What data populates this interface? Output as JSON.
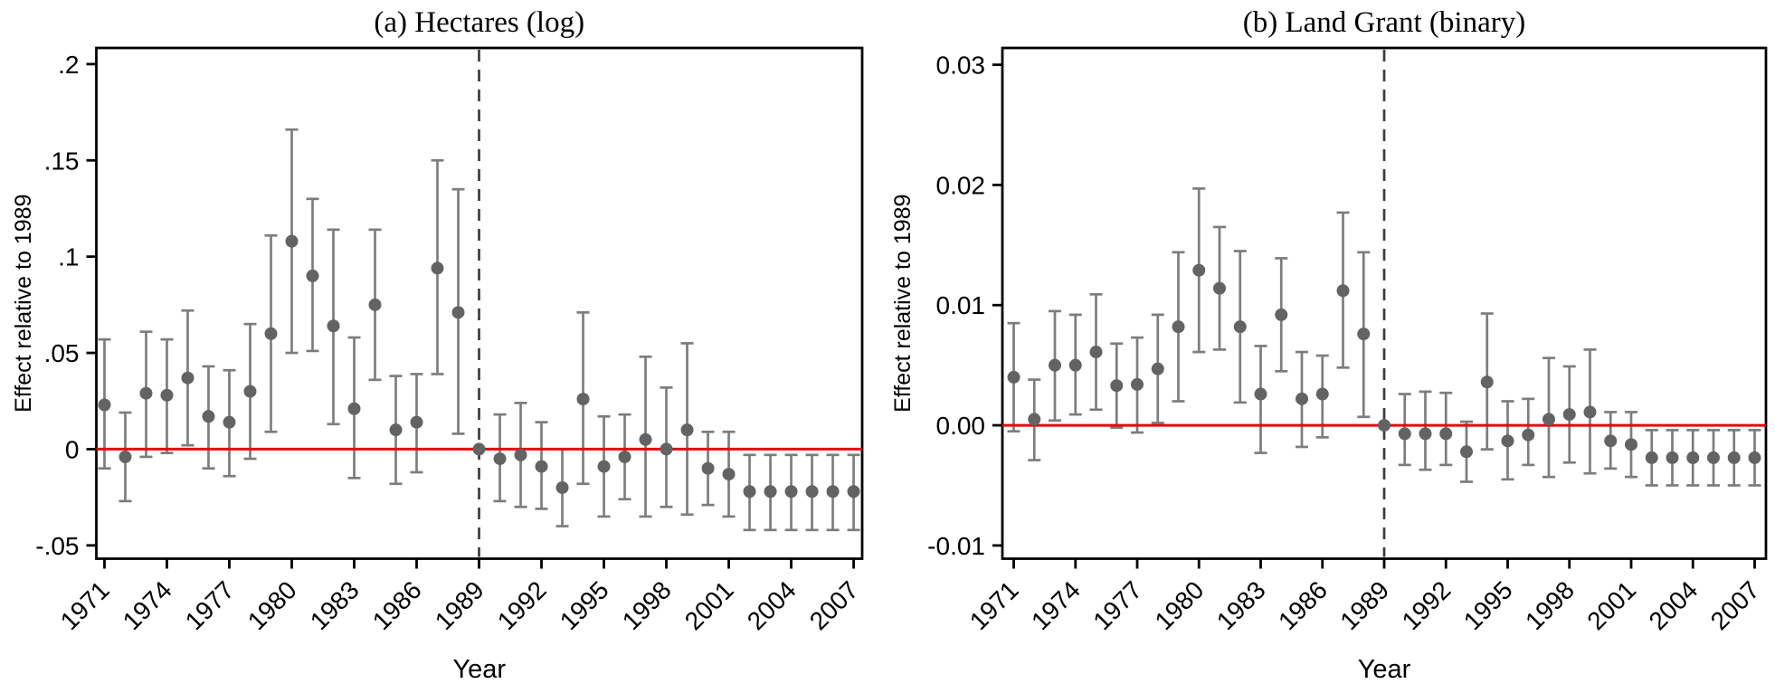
{
  "figure": {
    "description": "Two-panel event-study coefficient plot with 95% confidence interval bars, red horizontal line at zero and dashed vertical reference line at 1989"
  },
  "colors": {
    "point": "#636363",
    "error_bar": "#7d7d7d",
    "zero_line": "#e8000d",
    "reference_line": "#3c3c3c",
    "axis": "#000000"
  },
  "chart_data": [
    {
      "type": "scatter",
      "title": "(a) Hectares (log)",
      "xlabel": "Year",
      "ylabel": "Effect relative to 1989",
      "xlim": [
        1970.61,
        2007.41
      ],
      "ylim": [
        -0.0569,
        0.2084
      ],
      "grid": false,
      "legend": false,
      "reference_year": 1989,
      "zero_line_value": 0,
      "xticks": [
        {
          "v": 1971,
          "label": "1971"
        },
        {
          "v": 1974,
          "label": "1974"
        },
        {
          "v": 1977,
          "label": "1977"
        },
        {
          "v": 1980,
          "label": "1980"
        },
        {
          "v": 1983,
          "label": "1983"
        },
        {
          "v": 1986,
          "label": "1986"
        },
        {
          "v": 1989,
          "label": "1989"
        },
        {
          "v": 1992,
          "label": "1992"
        },
        {
          "v": 1995,
          "label": "1995"
        },
        {
          "v": 1998,
          "label": "1998"
        },
        {
          "v": 2001,
          "label": "2001"
        },
        {
          "v": 2004,
          "label": "2004"
        },
        {
          "v": 2007,
          "label": "2007"
        }
      ],
      "yticks": [
        {
          "v": 0.2,
          "label": ".2"
        },
        {
          "v": 0.15,
          "label": ".15"
        },
        {
          "v": 0.1,
          "label": ".1"
        },
        {
          "v": 0.05,
          "label": ".05"
        },
        {
          "v": 0,
          "label": "0"
        },
        {
          "v": -0.05,
          "label": "-.05"
        }
      ],
      "points": [
        {
          "year": 1971,
          "est": 0.023,
          "lo": -0.01,
          "hi": 0.057
        },
        {
          "year": 1972,
          "est": -0.004,
          "lo": -0.027,
          "hi": 0.019
        },
        {
          "year": 1973,
          "est": 0.029,
          "lo": -0.004,
          "hi": 0.061
        },
        {
          "year": 1974,
          "est": 0.028,
          "lo": -0.002,
          "hi": 0.057
        },
        {
          "year": 1975,
          "est": 0.037,
          "lo": 0.002,
          "hi": 0.072
        },
        {
          "year": 1976,
          "est": 0.017,
          "lo": -0.01,
          "hi": 0.043
        },
        {
          "year": 1977,
          "est": 0.014,
          "lo": -0.014,
          "hi": 0.041
        },
        {
          "year": 1978,
          "est": 0.03,
          "lo": -0.005,
          "hi": 0.065
        },
        {
          "year": 1979,
          "est": 0.06,
          "lo": 0.009,
          "hi": 0.111
        },
        {
          "year": 1980,
          "est": 0.108,
          "lo": 0.05,
          "hi": 0.166
        },
        {
          "year": 1981,
          "est": 0.09,
          "lo": 0.051,
          "hi": 0.13
        },
        {
          "year": 1982,
          "est": 0.064,
          "lo": 0.013,
          "hi": 0.114
        },
        {
          "year": 1983,
          "est": 0.021,
          "lo": -0.015,
          "hi": 0.058
        },
        {
          "year": 1984,
          "est": 0.075,
          "lo": 0.036,
          "hi": 0.114
        },
        {
          "year": 1985,
          "est": 0.01,
          "lo": -0.018,
          "hi": 0.038
        },
        {
          "year": 1986,
          "est": 0.014,
          "lo": -0.012,
          "hi": 0.039
        },
        {
          "year": 1987,
          "est": 0.094,
          "lo": 0.039,
          "hi": 0.15
        },
        {
          "year": 1988,
          "est": 0.071,
          "lo": 0.008,
          "hi": 0.135
        },
        {
          "year": 1989,
          "est": 0.0,
          "lo": null,
          "hi": null
        },
        {
          "year": 1990,
          "est": -0.005,
          "lo": -0.027,
          "hi": 0.018
        },
        {
          "year": 1991,
          "est": -0.003,
          "lo": -0.03,
          "hi": 0.024
        },
        {
          "year": 1992,
          "est": -0.009,
          "lo": -0.031,
          "hi": 0.014
        },
        {
          "year": 1993,
          "est": -0.02,
          "lo": -0.04,
          "hi": 0.0
        },
        {
          "year": 1994,
          "est": 0.026,
          "lo": -0.018,
          "hi": 0.071
        },
        {
          "year": 1995,
          "est": -0.009,
          "lo": -0.035,
          "hi": 0.017
        },
        {
          "year": 1996,
          "est": -0.004,
          "lo": -0.026,
          "hi": 0.018
        },
        {
          "year": 1997,
          "est": 0.005,
          "lo": -0.035,
          "hi": 0.048
        },
        {
          "year": 1998,
          "est": 0.0,
          "lo": -0.03,
          "hi": 0.032
        },
        {
          "year": 1999,
          "est": 0.01,
          "lo": -0.034,
          "hi": 0.055
        },
        {
          "year": 2000,
          "est": -0.01,
          "lo": -0.029,
          "hi": 0.009
        },
        {
          "year": 2001,
          "est": -0.013,
          "lo": -0.035,
          "hi": 0.009
        },
        {
          "year": 2002,
          "est": -0.022,
          "lo": -0.042,
          "hi": -0.003
        },
        {
          "year": 2003,
          "est": -0.022,
          "lo": -0.042,
          "hi": -0.003
        },
        {
          "year": 2004,
          "est": -0.022,
          "lo": -0.042,
          "hi": -0.003
        },
        {
          "year": 2005,
          "est": -0.022,
          "lo": -0.042,
          "hi": -0.003
        },
        {
          "year": 2006,
          "est": -0.022,
          "lo": -0.042,
          "hi": -0.003
        },
        {
          "year": 2007,
          "est": -0.022,
          "lo": -0.042,
          "hi": -0.003
        }
      ]
    },
    {
      "type": "scatter",
      "title": "(b) Land Grant (binary)",
      "xlabel": "Year",
      "ylabel": "Effect relative to 1989",
      "xlim": [
        1970.45,
        2007.55
      ],
      "ylim": [
        -0.0111,
        0.0314
      ],
      "grid": false,
      "legend": false,
      "reference_year": 1989,
      "zero_line_value": 0,
      "xticks": [
        {
          "v": 1971,
          "label": "1971"
        },
        {
          "v": 1974,
          "label": "1974"
        },
        {
          "v": 1977,
          "label": "1977"
        },
        {
          "v": 1980,
          "label": "1980"
        },
        {
          "v": 1983,
          "label": "1983"
        },
        {
          "v": 1986,
          "label": "1986"
        },
        {
          "v": 1989,
          "label": "1989"
        },
        {
          "v": 1992,
          "label": "1992"
        },
        {
          "v": 1995,
          "label": "1995"
        },
        {
          "v": 1998,
          "label": "1998"
        },
        {
          "v": 2001,
          "label": "2001"
        },
        {
          "v": 2004,
          "label": "2004"
        },
        {
          "v": 2007,
          "label": "2007"
        }
      ],
      "yticks": [
        {
          "v": 0.03,
          "label": "0.03"
        },
        {
          "v": 0.02,
          "label": "0.02"
        },
        {
          "v": 0.01,
          "label": "0.01"
        },
        {
          "v": 0,
          "label": "0.00"
        },
        {
          "v": -0.01,
          "label": "-0.01"
        }
      ],
      "points": [
        {
          "year": 1971,
          "est": 0.004,
          "lo": -0.0005,
          "hi": 0.0085
        },
        {
          "year": 1972,
          "est": 0.0005,
          "lo": -0.0029,
          "hi": 0.0038
        },
        {
          "year": 1973,
          "est": 0.005,
          "lo": 0.0004,
          "hi": 0.0095
        },
        {
          "year": 1974,
          "est": 0.005,
          "lo": 0.0009,
          "hi": 0.0092
        },
        {
          "year": 1975,
          "est": 0.0061,
          "lo": 0.0013,
          "hi": 0.0109
        },
        {
          "year": 1976,
          "est": 0.0033,
          "lo": -0.0002,
          "hi": 0.0068
        },
        {
          "year": 1977,
          "est": 0.0034,
          "lo": -0.0006,
          "hi": 0.0073
        },
        {
          "year": 1978,
          "est": 0.0047,
          "lo": 0.0002,
          "hi": 0.0092
        },
        {
          "year": 1979,
          "est": 0.0082,
          "lo": 0.002,
          "hi": 0.0144
        },
        {
          "year": 1980,
          "est": 0.0129,
          "lo": 0.0061,
          "hi": 0.0197
        },
        {
          "year": 1981,
          "est": 0.0114,
          "lo": 0.0063,
          "hi": 0.0165
        },
        {
          "year": 1982,
          "est": 0.0082,
          "lo": 0.0019,
          "hi": 0.0145
        },
        {
          "year": 1983,
          "est": 0.0026,
          "lo": -0.0023,
          "hi": 0.0066
        },
        {
          "year": 1984,
          "est": 0.0092,
          "lo": 0.0045,
          "hi": 0.0139
        },
        {
          "year": 1985,
          "est": 0.0022,
          "lo": -0.0018,
          "hi": 0.0061
        },
        {
          "year": 1986,
          "est": 0.0026,
          "lo": -0.001,
          "hi": 0.0058
        },
        {
          "year": 1987,
          "est": 0.0112,
          "lo": 0.0048,
          "hi": 0.0177
        },
        {
          "year": 1988,
          "est": 0.0076,
          "lo": 0.0007,
          "hi": 0.0144
        },
        {
          "year": 1989,
          "est": 0.0,
          "lo": null,
          "hi": null
        },
        {
          "year": 1990,
          "est": -0.0007,
          "lo": -0.0033,
          "hi": 0.0026
        },
        {
          "year": 1991,
          "est": -0.0007,
          "lo": -0.0037,
          "hi": 0.0028
        },
        {
          "year": 1992,
          "est": -0.0007,
          "lo": -0.0033,
          "hi": 0.0027
        },
        {
          "year": 1993,
          "est": -0.0022,
          "lo": -0.0047,
          "hi": 0.0003
        },
        {
          "year": 1994,
          "est": 0.0036,
          "lo": -0.002,
          "hi": 0.0093
        },
        {
          "year": 1995,
          "est": -0.0013,
          "lo": -0.0045,
          "hi": 0.002
        },
        {
          "year": 1996,
          "est": -0.0008,
          "lo": -0.0033,
          "hi": 0.0022
        },
        {
          "year": 1997,
          "est": 0.0005,
          "lo": -0.0043,
          "hi": 0.0056
        },
        {
          "year": 1998,
          "est": 0.0009,
          "lo": -0.0031,
          "hi": 0.0049
        },
        {
          "year": 1999,
          "est": 0.0011,
          "lo": -0.004,
          "hi": 0.0063
        },
        {
          "year": 2000,
          "est": -0.0013,
          "lo": -0.0036,
          "hi": 0.0011
        },
        {
          "year": 2001,
          "est": -0.0016,
          "lo": -0.0043,
          "hi": 0.0011
        },
        {
          "year": 2002,
          "est": -0.0027,
          "lo": -0.005,
          "hi": -0.0004
        },
        {
          "year": 2003,
          "est": -0.0027,
          "lo": -0.005,
          "hi": -0.0004
        },
        {
          "year": 2004,
          "est": -0.0027,
          "lo": -0.005,
          "hi": -0.0004
        },
        {
          "year": 2005,
          "est": -0.0027,
          "lo": -0.005,
          "hi": -0.0004
        },
        {
          "year": 2006,
          "est": -0.0027,
          "lo": -0.005,
          "hi": -0.0004
        },
        {
          "year": 2007,
          "est": -0.0027,
          "lo": -0.005,
          "hi": -0.0004
        }
      ]
    }
  ]
}
